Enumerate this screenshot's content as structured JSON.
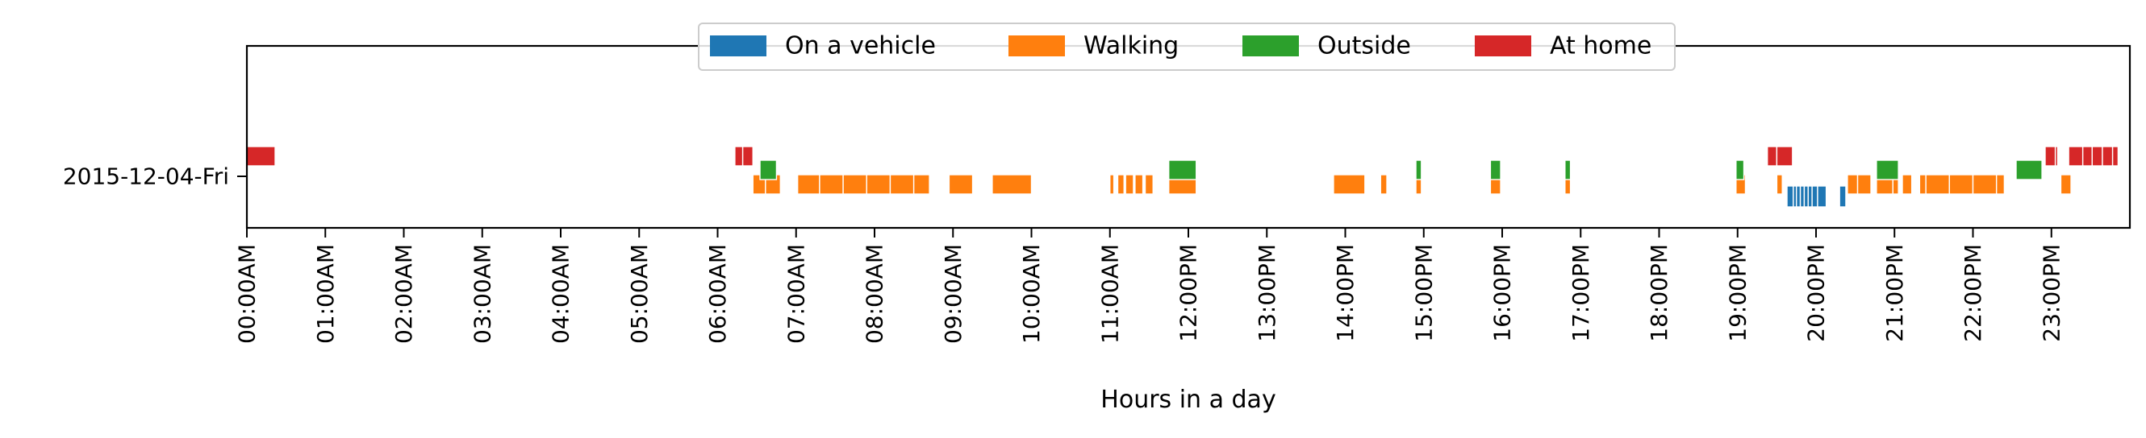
{
  "chart_data": {
    "type": "timeline",
    "xlabel": "Hours in a day",
    "ylabel": "",
    "title": "",
    "xlim": [
      0,
      24
    ],
    "grid": false,
    "legend_position": "top-center",
    "x_ticks": [
      "00:00AM",
      "01:00AM",
      "02:00AM",
      "03:00AM",
      "04:00AM",
      "05:00AM",
      "06:00AM",
      "07:00AM",
      "08:00AM",
      "09:00AM",
      "10:00AM",
      "11:00AM",
      "12:00PM",
      "13:00PM",
      "14:00PM",
      "15:00PM",
      "16:00PM",
      "17:00PM",
      "18:00PM",
      "19:00PM",
      "20:00PM",
      "21:00PM",
      "22:00PM",
      "23:00PM"
    ],
    "y_categories": [
      "2015-12-04-Fri"
    ],
    "series": [
      {
        "name": "On a vehicle",
        "color": "#1f77b4",
        "intervals": [
          [
            19.63,
            19.71
          ],
          [
            19.71,
            19.75
          ],
          [
            19.75,
            19.8
          ],
          [
            19.8,
            19.85
          ],
          [
            19.85,
            19.9
          ],
          [
            19.9,
            19.95
          ],
          [
            19.95,
            20.02
          ],
          [
            20.02,
            20.13
          ],
          [
            20.3,
            20.38
          ]
        ]
      },
      {
        "name": "Walking",
        "color": "#ff7f0e",
        "intervals": [
          [
            6.45,
            6.61
          ],
          [
            6.61,
            6.8
          ],
          [
            7.02,
            7.3
          ],
          [
            7.3,
            7.6
          ],
          [
            7.6,
            7.9
          ],
          [
            7.9,
            8.2
          ],
          [
            8.2,
            8.5
          ],
          [
            8.5,
            8.7
          ],
          [
            8.95,
            9.25
          ],
          [
            9.5,
            10.0
          ],
          [
            11.0,
            11.05
          ],
          [
            11.1,
            11.18
          ],
          [
            11.2,
            11.3
          ],
          [
            11.32,
            11.42
          ],
          [
            11.45,
            11.55
          ],
          [
            11.75,
            12.1
          ],
          [
            13.85,
            14.25
          ],
          [
            14.45,
            14.53
          ],
          [
            14.9,
            14.97
          ],
          [
            15.85,
            15.98
          ],
          [
            16.8,
            16.87
          ],
          [
            18.98,
            19.1
          ],
          [
            19.5,
            19.57
          ],
          [
            20.4,
            20.53
          ],
          [
            20.53,
            20.7
          ],
          [
            20.77,
            20.98
          ],
          [
            20.98,
            21.05
          ],
          [
            21.1,
            21.22
          ],
          [
            21.32,
            21.4
          ],
          [
            21.4,
            21.7
          ],
          [
            21.7,
            22.0
          ],
          [
            22.0,
            22.3
          ],
          [
            22.3,
            22.4
          ],
          [
            23.12,
            23.25
          ]
        ]
      },
      {
        "name": "Outside",
        "color": "#2ca02c",
        "intervals": [
          [
            6.54,
            6.75
          ],
          [
            11.75,
            12.1
          ],
          [
            14.9,
            14.97
          ],
          [
            15.85,
            15.98
          ],
          [
            16.8,
            16.87
          ],
          [
            18.98,
            19.08
          ],
          [
            20.77,
            21.05
          ],
          [
            22.55,
            22.88
          ]
        ]
      },
      {
        "name": "At home",
        "color": "#d62728",
        "intervals": [
          [
            0.0,
            0.36
          ],
          [
            6.22,
            6.32
          ],
          [
            6.32,
            6.45
          ],
          [
            19.38,
            19.5
          ],
          [
            19.5,
            19.7
          ],
          [
            22.92,
            23.05
          ],
          [
            23.05,
            23.08
          ],
          [
            23.22,
            23.4
          ],
          [
            23.4,
            23.52
          ],
          [
            23.52,
            23.65
          ],
          [
            23.65,
            23.78
          ],
          [
            23.78,
            23.85
          ]
        ]
      }
    ]
  }
}
